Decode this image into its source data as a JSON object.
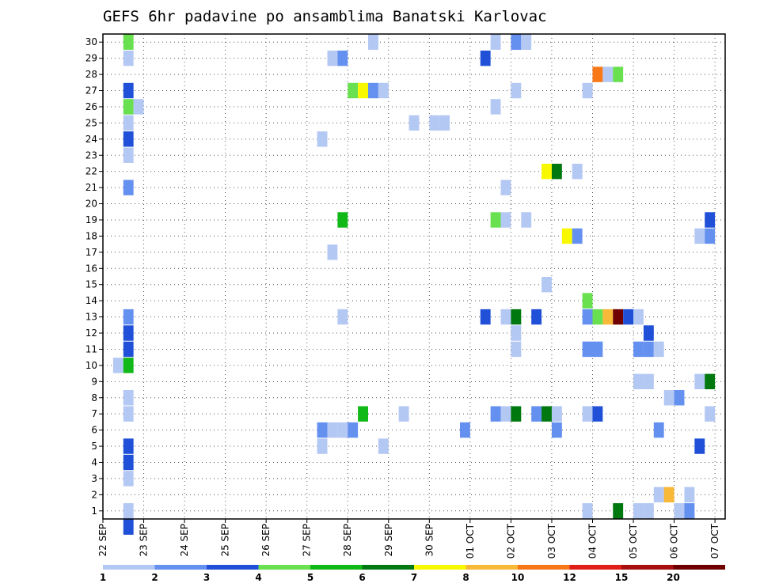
{
  "chart_data": {
    "type": "heatmap",
    "title": "GEFS 6hr padavine po ansamblima Banatski Karlovac",
    "y_tick_labels": [
      "1",
      "2",
      "3",
      "4",
      "5",
      "6",
      "7",
      "8",
      "9",
      "10",
      "11",
      "12",
      "13",
      "14",
      "15",
      "16",
      "17",
      "18",
      "19",
      "20",
      "21",
      "22",
      "23",
      "24",
      "25",
      "26",
      "27",
      "28",
      "29",
      "30"
    ],
    "x_tick_labels": [
      "22 SEP",
      "23 SEP",
      "24 SEP",
      "25 SEP",
      "26 SEP",
      "27 SEP",
      "28 SEP",
      "29 SEP",
      "30 SEP",
      "01 OCT",
      "02 OCT",
      "03 OCT",
      "04 OCT",
      "05 OCT",
      "06 OCT",
      "07 OCT"
    ],
    "x_unit": "6-hour step from 22 SEP 00Z",
    "x_range": [
      0,
      61
    ],
    "y_range": [
      0.5,
      30.5
    ],
    "grid": true,
    "color_scale": {
      "colors": [
        "#b4c8f4",
        "#6490f0",
        "#2050d8",
        "#68e050",
        "#10b818",
        "#007810",
        "#f8f800",
        "#f8b838",
        "#f87818",
        "#e02018",
        "#a81010",
        "#700000"
      ],
      "labels": [
        "1",
        "2",
        "3",
        "4",
        "5",
        "6",
        "7",
        "8",
        "10",
        "12",
        "15",
        "20"
      ]
    },
    "cells": [
      {
        "t": 2.5,
        "m": 0,
        "c": 2
      },
      {
        "t": 2.5,
        "m": 1,
        "c": 0
      },
      {
        "t": 1.5,
        "m": 10,
        "c": 0
      },
      {
        "t": 2.5,
        "m": 10,
        "c": 4
      },
      {
        "t": 2.5,
        "m": 4,
        "c": 2
      },
      {
        "t": 2.5,
        "m": 5,
        "c": 2
      },
      {
        "t": 2.5,
        "m": 3,
        "c": 0
      },
      {
        "t": 2.5,
        "m": 7,
        "c": 0
      },
      {
        "t": 2.5,
        "m": 8,
        "c": 0
      },
      {
        "t": 2.5,
        "m": 11,
        "c": 2
      },
      {
        "t": 2.5,
        "m": 12,
        "c": 2
      },
      {
        "t": 2.5,
        "m": 13,
        "c": 1
      },
      {
        "t": 2.5,
        "m": 21,
        "c": 1
      },
      {
        "t": 2.5,
        "m": 23,
        "c": 0
      },
      {
        "t": 2.5,
        "m": 24,
        "c": 2
      },
      {
        "t": 2.5,
        "m": 25,
        "c": 0
      },
      {
        "t": 2.5,
        "m": 26,
        "c": 3
      },
      {
        "t": 3.5,
        "m": 26,
        "c": 0
      },
      {
        "t": 2.5,
        "m": 27,
        "c": 2
      },
      {
        "t": 2.5,
        "m": 29,
        "c": 0
      },
      {
        "t": 2.5,
        "m": 30,
        "c": 3
      },
      {
        "t": 21.5,
        "m": 5,
        "c": 0
      },
      {
        "t": 21.5,
        "m": 6,
        "c": 1
      },
      {
        "t": 22.5,
        "m": 6,
        "c": 0
      },
      {
        "t": 23.5,
        "m": 6,
        "c": 0
      },
      {
        "t": 24.5,
        "m": 6,
        "c": 1
      },
      {
        "t": 25.5,
        "m": 7,
        "c": 4
      },
      {
        "t": 27.5,
        "m": 5,
        "c": 0
      },
      {
        "t": 29.5,
        "m": 7,
        "c": 0
      },
      {
        "t": 35.5,
        "m": 6,
        "c": 1
      },
      {
        "t": 22.5,
        "m": 17,
        "c": 0
      },
      {
        "t": 23.5,
        "m": 13,
        "c": 0
      },
      {
        "t": 23.5,
        "m": 19,
        "c": 4
      },
      {
        "t": 21.5,
        "m": 24,
        "c": 0
      },
      {
        "t": 30.5,
        "m": 25,
        "c": 0
      },
      {
        "t": 32.5,
        "m": 25,
        "c": 0
      },
      {
        "t": 33.5,
        "m": 25,
        "c": 0
      },
      {
        "t": 24.5,
        "m": 27,
        "c": 3
      },
      {
        "t": 25.5,
        "m": 27,
        "c": 6
      },
      {
        "t": 26.5,
        "m": 27,
        "c": 1
      },
      {
        "t": 27.5,
        "m": 27,
        "c": 0
      },
      {
        "t": 22.5,
        "m": 29,
        "c": 0
      },
      {
        "t": 23.5,
        "m": 29,
        "c": 1
      },
      {
        "t": 26.5,
        "m": 30,
        "c": 0
      },
      {
        "t": 37.5,
        "m": 13,
        "c": 2
      },
      {
        "t": 37.5,
        "m": 29,
        "c": 2
      },
      {
        "t": 38.5,
        "m": 26,
        "c": 0
      },
      {
        "t": 38.5,
        "m": 19,
        "c": 3
      },
      {
        "t": 39.5,
        "m": 19,
        "c": 0
      },
      {
        "t": 41.5,
        "m": 19,
        "c": 0
      },
      {
        "t": 38.5,
        "m": 7,
        "c": 1
      },
      {
        "t": 39.5,
        "m": 7,
        "c": 0
      },
      {
        "t": 40.5,
        "m": 7,
        "c": 5
      },
      {
        "t": 39.5,
        "m": 13,
        "c": 0
      },
      {
        "t": 40.5,
        "m": 13,
        "c": 5
      },
      {
        "t": 42.5,
        "m": 13,
        "c": 2
      },
      {
        "t": 40.5,
        "m": 11,
        "c": 0
      },
      {
        "t": 40.5,
        "m": 12,
        "c": 0
      },
      {
        "t": 39.5,
        "m": 21,
        "c": 0
      },
      {
        "t": 40.5,
        "m": 27,
        "c": 0
      },
      {
        "t": 38.5,
        "m": 30,
        "c": 0
      },
      {
        "t": 40.5,
        "m": 30,
        "c": 1
      },
      {
        "t": 41.5,
        "m": 30,
        "c": 0
      },
      {
        "t": 42.5,
        "m": 7,
        "c": 1
      },
      {
        "t": 43.5,
        "m": 7,
        "c": 5
      },
      {
        "t": 44.5,
        "m": 7,
        "c": 0
      },
      {
        "t": 44.5,
        "m": 6,
        "c": 1
      },
      {
        "t": 43.5,
        "m": 15,
        "c": 0
      },
      {
        "t": 43.5,
        "m": 22,
        "c": 6
      },
      {
        "t": 44.5,
        "m": 22,
        "c": 5
      },
      {
        "t": 46.5,
        "m": 22,
        "c": 0
      },
      {
        "t": 45.5,
        "m": 18,
        "c": 6
      },
      {
        "t": 46.5,
        "m": 18,
        "c": 1
      },
      {
        "t": 47.5,
        "m": 14,
        "c": 3
      },
      {
        "t": 47.5,
        "m": 13,
        "c": 1
      },
      {
        "t": 48.5,
        "m": 13,
        "c": 3
      },
      {
        "t": 49.5,
        "m": 13,
        "c": 7
      },
      {
        "t": 50.5,
        "m": 13,
        "c": 11
      },
      {
        "t": 51.5,
        "m": 13,
        "c": 2
      },
      {
        "t": 52.5,
        "m": 13,
        "c": 0
      },
      {
        "t": 47.5,
        "m": 11,
        "c": 1
      },
      {
        "t": 48.5,
        "m": 11,
        "c": 1
      },
      {
        "t": 47.5,
        "m": 7,
        "c": 0
      },
      {
        "t": 48.5,
        "m": 7,
        "c": 2
      },
      {
        "t": 47.5,
        "m": 1,
        "c": 0
      },
      {
        "t": 47.5,
        "m": 27,
        "c": 0
      },
      {
        "t": 48.5,
        "m": 28,
        "c": 8
      },
      {
        "t": 49.5,
        "m": 28,
        "c": 0
      },
      {
        "t": 50.5,
        "m": 28,
        "c": 3
      },
      {
        "t": 50.5,
        "m": 1,
        "c": 5
      },
      {
        "t": 52.5,
        "m": 1,
        "c": 0
      },
      {
        "t": 53.5,
        "m": 1,
        "c": 0
      },
      {
        "t": 52.5,
        "m": 9,
        "c": 0
      },
      {
        "t": 53.5,
        "m": 9,
        "c": 0
      },
      {
        "t": 53.5,
        "m": 12,
        "c": 2
      },
      {
        "t": 52.5,
        "m": 11,
        "c": 1
      },
      {
        "t": 53.5,
        "m": 11,
        "c": 1
      },
      {
        "t": 54.5,
        "m": 11,
        "c": 0
      },
      {
        "t": 54.5,
        "m": 6,
        "c": 1
      },
      {
        "t": 54.5,
        "m": 2,
        "c": 0
      },
      {
        "t": 55.5,
        "m": 2,
        "c": 7
      },
      {
        "t": 55.5,
        "m": 8,
        "c": 0
      },
      {
        "t": 56.5,
        "m": 8,
        "c": 1
      },
      {
        "t": 56.5,
        "m": 1,
        "c": 0
      },
      {
        "t": 57.5,
        "m": 1,
        "c": 1
      },
      {
        "t": 57.5,
        "m": 2,
        "c": 0
      },
      {
        "t": 58.5,
        "m": 5,
        "c": 2
      },
      {
        "t": 58.5,
        "m": 9,
        "c": 0
      },
      {
        "t": 59.5,
        "m": 9,
        "c": 5
      },
      {
        "t": 58.5,
        "m": 18,
        "c": 0
      },
      {
        "t": 59.5,
        "m": 18,
        "c": 1
      },
      {
        "t": 59.5,
        "m": 19,
        "c": 2
      },
      {
        "t": 59.5,
        "m": 7,
        "c": 0
      }
    ]
  }
}
